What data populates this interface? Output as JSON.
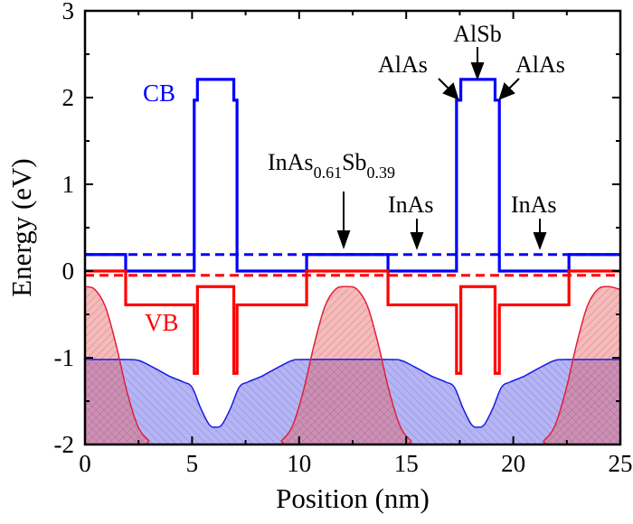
{
  "chart_data": {
    "type": "line",
    "title": "",
    "xlabel": "Position (nm)",
    "ylabel": "Energy (eV)",
    "xlim": [
      0,
      25
    ],
    "ylim": [
      -2,
      3
    ],
    "xticks": [
      "0",
      "5",
      "10",
      "15",
      "20",
      "25"
    ],
    "yticks": [
      "3",
      "2",
      "1",
      "0",
      "-1",
      "-2"
    ],
    "grid": false,
    "layers": [
      {
        "material": "InAs0.61Sb0.39",
        "x": [
          0,
          1.9
        ],
        "cb": 0.19,
        "vb": 0.0
      },
      {
        "material": "InAs",
        "x": [
          1.9,
          5.1
        ],
        "cb": 0.0,
        "vb": -0.39
      },
      {
        "material": "AlAs",
        "x": [
          5.1,
          5.25
        ],
        "cb": 1.97,
        "vb": -1.18
      },
      {
        "material": "AlSb",
        "x": [
          5.25,
          6.95
        ],
        "cb": 2.21,
        "vb": -0.18
      },
      {
        "material": "AlAs",
        "x": [
          6.95,
          7.1
        ],
        "cb": 1.97,
        "vb": -1.18
      },
      {
        "material": "InAs",
        "x": [
          7.1,
          10.35
        ],
        "cb": 0.0,
        "vb": -0.39
      },
      {
        "material": "InAs0.61Sb0.39",
        "x": [
          10.35,
          14.15
        ],
        "cb": 0.19,
        "vb": 0.0
      },
      {
        "material": "InAs",
        "x": [
          14.15,
          17.35
        ],
        "cb": 0.0,
        "vb": -0.39
      },
      {
        "material": "AlAs",
        "x": [
          17.35,
          17.55
        ],
        "cb": 1.97,
        "vb": -1.18
      },
      {
        "material": "AlSb",
        "x": [
          17.55,
          19.15
        ],
        "cb": 2.21,
        "vb": -0.18
      },
      {
        "material": "AlAs",
        "x": [
          19.15,
          19.35
        ],
        "cb": 1.97,
        "vb": -1.18
      },
      {
        "material": "InAs",
        "x": [
          19.35,
          22.6
        ],
        "cb": 0.0,
        "vb": -0.39
      },
      {
        "material": "InAs0.61Sb0.39",
        "x": [
          22.6,
          25
        ],
        "cb": 0.19,
        "vb": 0.0
      }
    ],
    "dashed_levels": [
      {
        "label": "electron level",
        "y": 0.19,
        "color": "#0000ff"
      },
      {
        "label": "hole level",
        "y": -0.05,
        "color": "#ff0000"
      }
    ],
    "electron_density": {
      "color": "#0000ff",
      "x": [
        0,
        1.9,
        2.5,
        3.1,
        3.7,
        4.0,
        4.6,
        5.0,
        5.4,
        5.8,
        6.1,
        6.4,
        6.8,
        7.2,
        7.6,
        8.2,
        8.5,
        9.1,
        9.7,
        10.3,
        14.1,
        14.75,
        15.35,
        15.95,
        16.25,
        16.85,
        17.25,
        17.65,
        18.05,
        18.35,
        18.65,
        19.05,
        19.45,
        19.85,
        20.45,
        20.75,
        21.35,
        21.95,
        22.55,
        25
      ],
      "y": [
        -1.02,
        -1.02,
        -1.03,
        -1.1,
        -1.18,
        -1.22,
        -1.28,
        -1.34,
        -1.58,
        -1.77,
        -1.8,
        -1.77,
        -1.58,
        -1.34,
        -1.28,
        -1.22,
        -1.18,
        -1.1,
        -1.03,
        -1.02,
        -1.02,
        -1.03,
        -1.1,
        -1.18,
        -1.22,
        -1.28,
        -1.34,
        -1.58,
        -1.77,
        -1.8,
        -1.77,
        -1.58,
        -1.34,
        -1.28,
        -1.22,
        -1.18,
        -1.1,
        -1.03,
        -1.02,
        -1.02
      ]
    },
    "hole_density": {
      "color": "#ff0000",
      "x": [
        0,
        0.45,
        0.95,
        1.45,
        1.95,
        2.45,
        2.95,
        3.45,
        8.75,
        9.2,
        9.7,
        10.2,
        10.7,
        11.2,
        11.7,
        12.2,
        12.7,
        13.2,
        13.7,
        14.2,
        14.7,
        15.2,
        15.7,
        20.95,
        21.45,
        21.95,
        22.45,
        22.95,
        23.45,
        23.95,
        24.45,
        24.95,
        25
      ],
      "y": [
        -0.18,
        -0.21,
        -0.41,
        -0.85,
        -1.38,
        -1.78,
        -1.95,
        -2.0,
        -2.0,
        -1.95,
        -1.78,
        -1.38,
        -0.85,
        -0.41,
        -0.21,
        -0.18,
        -0.21,
        -0.41,
        -0.85,
        -1.38,
        -1.78,
        -1.95,
        -2.0,
        -2.0,
        -1.95,
        -1.78,
        -1.38,
        -0.85,
        -0.41,
        -0.21,
        -0.18,
        -0.21,
        -0.22
      ]
    },
    "annotations": {
      "cb": "CB",
      "vb": "VB",
      "inassb_main": "InAs",
      "inassb_sub1": "0.61",
      "inassb_mid": "Sb",
      "inassb_sub2": "0.39",
      "inas_1": "InAs",
      "inas_2": "InAs",
      "alsb": "AlSb",
      "alas_left": "AlAs",
      "alas_right": "AlAs"
    },
    "colors": {
      "cb": "#0000ff",
      "vb": "#ff0000",
      "electron_fill": "#a8a8f0",
      "hole_fill": "#f0a8a8"
    }
  }
}
